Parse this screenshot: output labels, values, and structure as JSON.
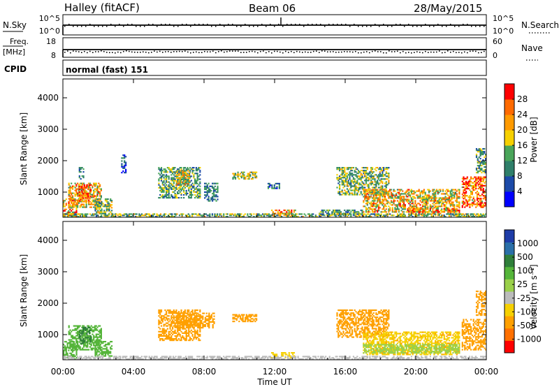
{
  "header": {
    "station": "Halley (fitACF)",
    "beam": "Beam 06",
    "date": "28/May/2015"
  },
  "sky_panel": {
    "left_label": "N.Sky",
    "right_label": "N.Search",
    "left_ticks": [
      "10^5",
      "10^0"
    ],
    "right_ticks": [
      "10^5",
      "10^0"
    ]
  },
  "freq_panel": {
    "left_label_top": "Freq.",
    "left_label_unit": "[MHz]",
    "right_label": "Nave",
    "left_ticks": [
      "18",
      "8"
    ],
    "right_ticks": [
      "60",
      "0"
    ]
  },
  "cpid": {
    "label": "CPID",
    "value": "normal (fast) 151"
  },
  "power_panel": {
    "ylabel": "Slant Range [km]",
    "yticks": [
      "1000",
      "2000",
      "3000",
      "4000"
    ],
    "colorbar_title": "Power [dB]",
    "colorbar_ticks": [
      "4",
      "8",
      "12",
      "16",
      "20",
      "24",
      "28"
    ],
    "colorbar_colors": [
      "#0000ff",
      "#1c4aa8",
      "#2f7f6a",
      "#4aa55a",
      "#f6d000",
      "#ff9a00",
      "#ff6a00",
      "#ff0000"
    ]
  },
  "velocity_panel": {
    "ylabel": "Slant Range [km]",
    "yticks": [
      "1000",
      "2000",
      "3000",
      "4000"
    ],
    "colorbar_title": "Velocity [m s⁻¹]",
    "colorbar_ticks": [
      "1000",
      "500",
      "100",
      "25",
      "-25",
      "-100",
      "-500",
      "-1000"
    ],
    "colorbar_colors": [
      "#1e3ca8",
      "#2a6fa8",
      "#2f7f3a",
      "#55b53a",
      "#9ad04a",
      "#bbbbbb",
      "#f6d000",
      "#ffa000",
      "#ff7000",
      "#ff0000"
    ]
  },
  "x_axis": {
    "ticks": [
      "00:00",
      "04:00",
      "08:00",
      "12:00",
      "16:00",
      "20:00",
      "00:00"
    ],
    "label": "Time UT"
  },
  "chart_data": [
    {
      "type": "heatmap",
      "title": "Power [dB]",
      "xlabel": "Time UT",
      "ylabel": "Slant Range [km]",
      "xlim": [
        0,
        24
      ],
      "ylim": [
        200,
        4600
      ],
      "colorbar": {
        "min": 0,
        "max": 32,
        "ticks": [
          4,
          8,
          12,
          16,
          20,
          24,
          28
        ]
      },
      "regions": [
        {
          "t0": 0.0,
          "t1": 0.8,
          "r0": 200,
          "r1": 800,
          "v": 24
        },
        {
          "t0": 0.3,
          "t1": 2.2,
          "r0": 500,
          "r1": 1300,
          "v": 20
        },
        {
          "t0": 0.9,
          "t1": 1.6,
          "r0": 700,
          "r1": 1250,
          "v": 27
        },
        {
          "t0": 0.9,
          "t1": 1.2,
          "r0": 1400,
          "r1": 1800,
          "v": 10
        },
        {
          "t0": 1.8,
          "t1": 2.8,
          "r0": 300,
          "r1": 800,
          "v": 14
        },
        {
          "t0": 3.3,
          "t1": 3.6,
          "r0": 1600,
          "r1": 2200,
          "v": 8
        },
        {
          "t0": 5.4,
          "t1": 7.8,
          "r0": 800,
          "r1": 1800,
          "v": 12
        },
        {
          "t0": 6.4,
          "t1": 7.2,
          "r0": 1200,
          "r1": 1700,
          "v": 18
        },
        {
          "t0": 8.0,
          "t1": 8.8,
          "r0": 700,
          "r1": 1300,
          "v": 10
        },
        {
          "t0": 9.6,
          "t1": 11.0,
          "r0": 1400,
          "r1": 1650,
          "v": 16
        },
        {
          "t0": 11.6,
          "t1": 12.3,
          "r0": 1100,
          "r1": 1300,
          "v": 8
        },
        {
          "t0": 11.8,
          "t1": 13.2,
          "r0": 250,
          "r1": 450,
          "v": 22
        },
        {
          "t0": 14.5,
          "t1": 17.0,
          "r0": 250,
          "r1": 450,
          "v": 12
        },
        {
          "t0": 15.5,
          "t1": 18.5,
          "r0": 900,
          "r1": 1800,
          "v": 14
        },
        {
          "t0": 17.0,
          "t1": 22.5,
          "r0": 350,
          "r1": 1100,
          "v": 20
        },
        {
          "t0": 19.5,
          "t1": 22.5,
          "r0": 300,
          "r1": 500,
          "v": 24
        },
        {
          "t0": 22.6,
          "t1": 24.0,
          "r0": 500,
          "r1": 1500,
          "v": 26
        },
        {
          "t0": 23.4,
          "t1": 24.0,
          "r0": 1600,
          "r1": 2400,
          "v": 12
        },
        {
          "t0": 0.0,
          "t1": 24.0,
          "r0": 200,
          "r1": 320,
          "v": 14
        }
      ]
    },
    {
      "type": "heatmap",
      "title": "Velocity [m s⁻¹]",
      "xlabel": "Time UT",
      "ylabel": "Slant Range [km]",
      "xlim": [
        0,
        24
      ],
      "ylim": [
        200,
        4600
      ],
      "colorbar": {
        "ticks": [
          1000,
          500,
          100,
          25,
          -25,
          -100,
          -500,
          -1000
        ]
      },
      "regions": [
        {
          "t0": 0.0,
          "t1": 0.8,
          "r0": 200,
          "r1": 800,
          "v": 150
        },
        {
          "t0": 0.3,
          "t1": 2.2,
          "r0": 500,
          "r1": 1300,
          "v": 300
        },
        {
          "t0": 0.9,
          "t1": 1.6,
          "r0": 700,
          "r1": 1250,
          "v": 600
        },
        {
          "t0": 1.8,
          "t1": 2.8,
          "r0": 300,
          "r1": 800,
          "v": 200
        },
        {
          "t0": 5.4,
          "t1": 7.8,
          "r0": 800,
          "r1": 1800,
          "v": -150
        },
        {
          "t0": 6.4,
          "t1": 8.6,
          "r0": 1200,
          "r1": 1700,
          "v": -300
        },
        {
          "t0": 9.6,
          "t1": 11.0,
          "r0": 1400,
          "r1": 1650,
          "v": -200
        },
        {
          "t0": 11.8,
          "t1": 13.2,
          "r0": 250,
          "r1": 450,
          "v": -60
        },
        {
          "t0": 15.5,
          "t1": 18.5,
          "r0": 900,
          "r1": 1800,
          "v": -150
        },
        {
          "t0": 17.0,
          "t1": 22.5,
          "r0": 350,
          "r1": 1100,
          "v": -80
        },
        {
          "t0": 17.0,
          "t1": 22.5,
          "r0": 400,
          "r1": 700,
          "v": 60
        },
        {
          "t0": 22.6,
          "t1": 24.0,
          "r0": 500,
          "r1": 1500,
          "v": -250
        },
        {
          "t0": 23.4,
          "t1": 24.0,
          "r0": 1600,
          "r1": 2400,
          "v": -300
        },
        {
          "t0": 0.0,
          "t1": 24.0,
          "r0": 200,
          "r1": 320,
          "v": 0
        }
      ]
    }
  ]
}
